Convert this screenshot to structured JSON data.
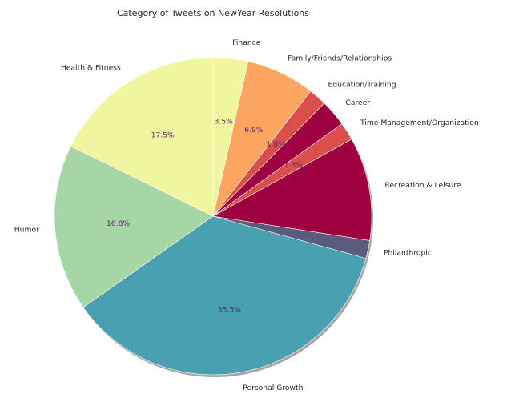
{
  "chart_data": {
    "type": "pie",
    "title": "Category of Tweets on NewYear Resolutions",
    "start_angle_deg": 90,
    "direction": "counterclockwise",
    "pct_color": "#5b2b63",
    "edge_color": "#ffffff",
    "shadow": true,
    "slices": [
      {
        "label": "Health & Fitness",
        "value": 17.5,
        "pct_label": "17.5%",
        "color": "#f0f5a0"
      },
      {
        "label": "Humor",
        "value": 16.8,
        "pct_label": "16.8%",
        "color": "#a6d6a5"
      },
      {
        "label": "Personal Growth",
        "value": 35.5,
        "pct_label": "35.5%",
        "color": "#49a0b1"
      },
      {
        "label": "Philanthropic",
        "value": 1.8,
        "pct_label": "",
        "color": "#5b5b7e"
      },
      {
        "label": "Recreation & Leisure",
        "value": 10.4,
        "pct_label": "",
        "color": "#9e0040"
      },
      {
        "label": "Time Management/Organization",
        "value": 1.8,
        "pct_label": "1.8%",
        "color": "#dc4e4c"
      },
      {
        "label": "Career",
        "value": 2.7,
        "pct_label": "",
        "color": "#9e0040"
      },
      {
        "label": "Education/Training",
        "value": 1.8,
        "pct_label": "1.8%",
        "color": "#dc4e4c"
      },
      {
        "label": "Family/Friends/Relationships",
        "value": 6.9,
        "pct_label": "6.9%",
        "color": "#fca560"
      },
      {
        "label": "Finance",
        "value": 3.5,
        "pct_label": "3.5%",
        "color": "#f0f5a0"
      }
    ]
  }
}
